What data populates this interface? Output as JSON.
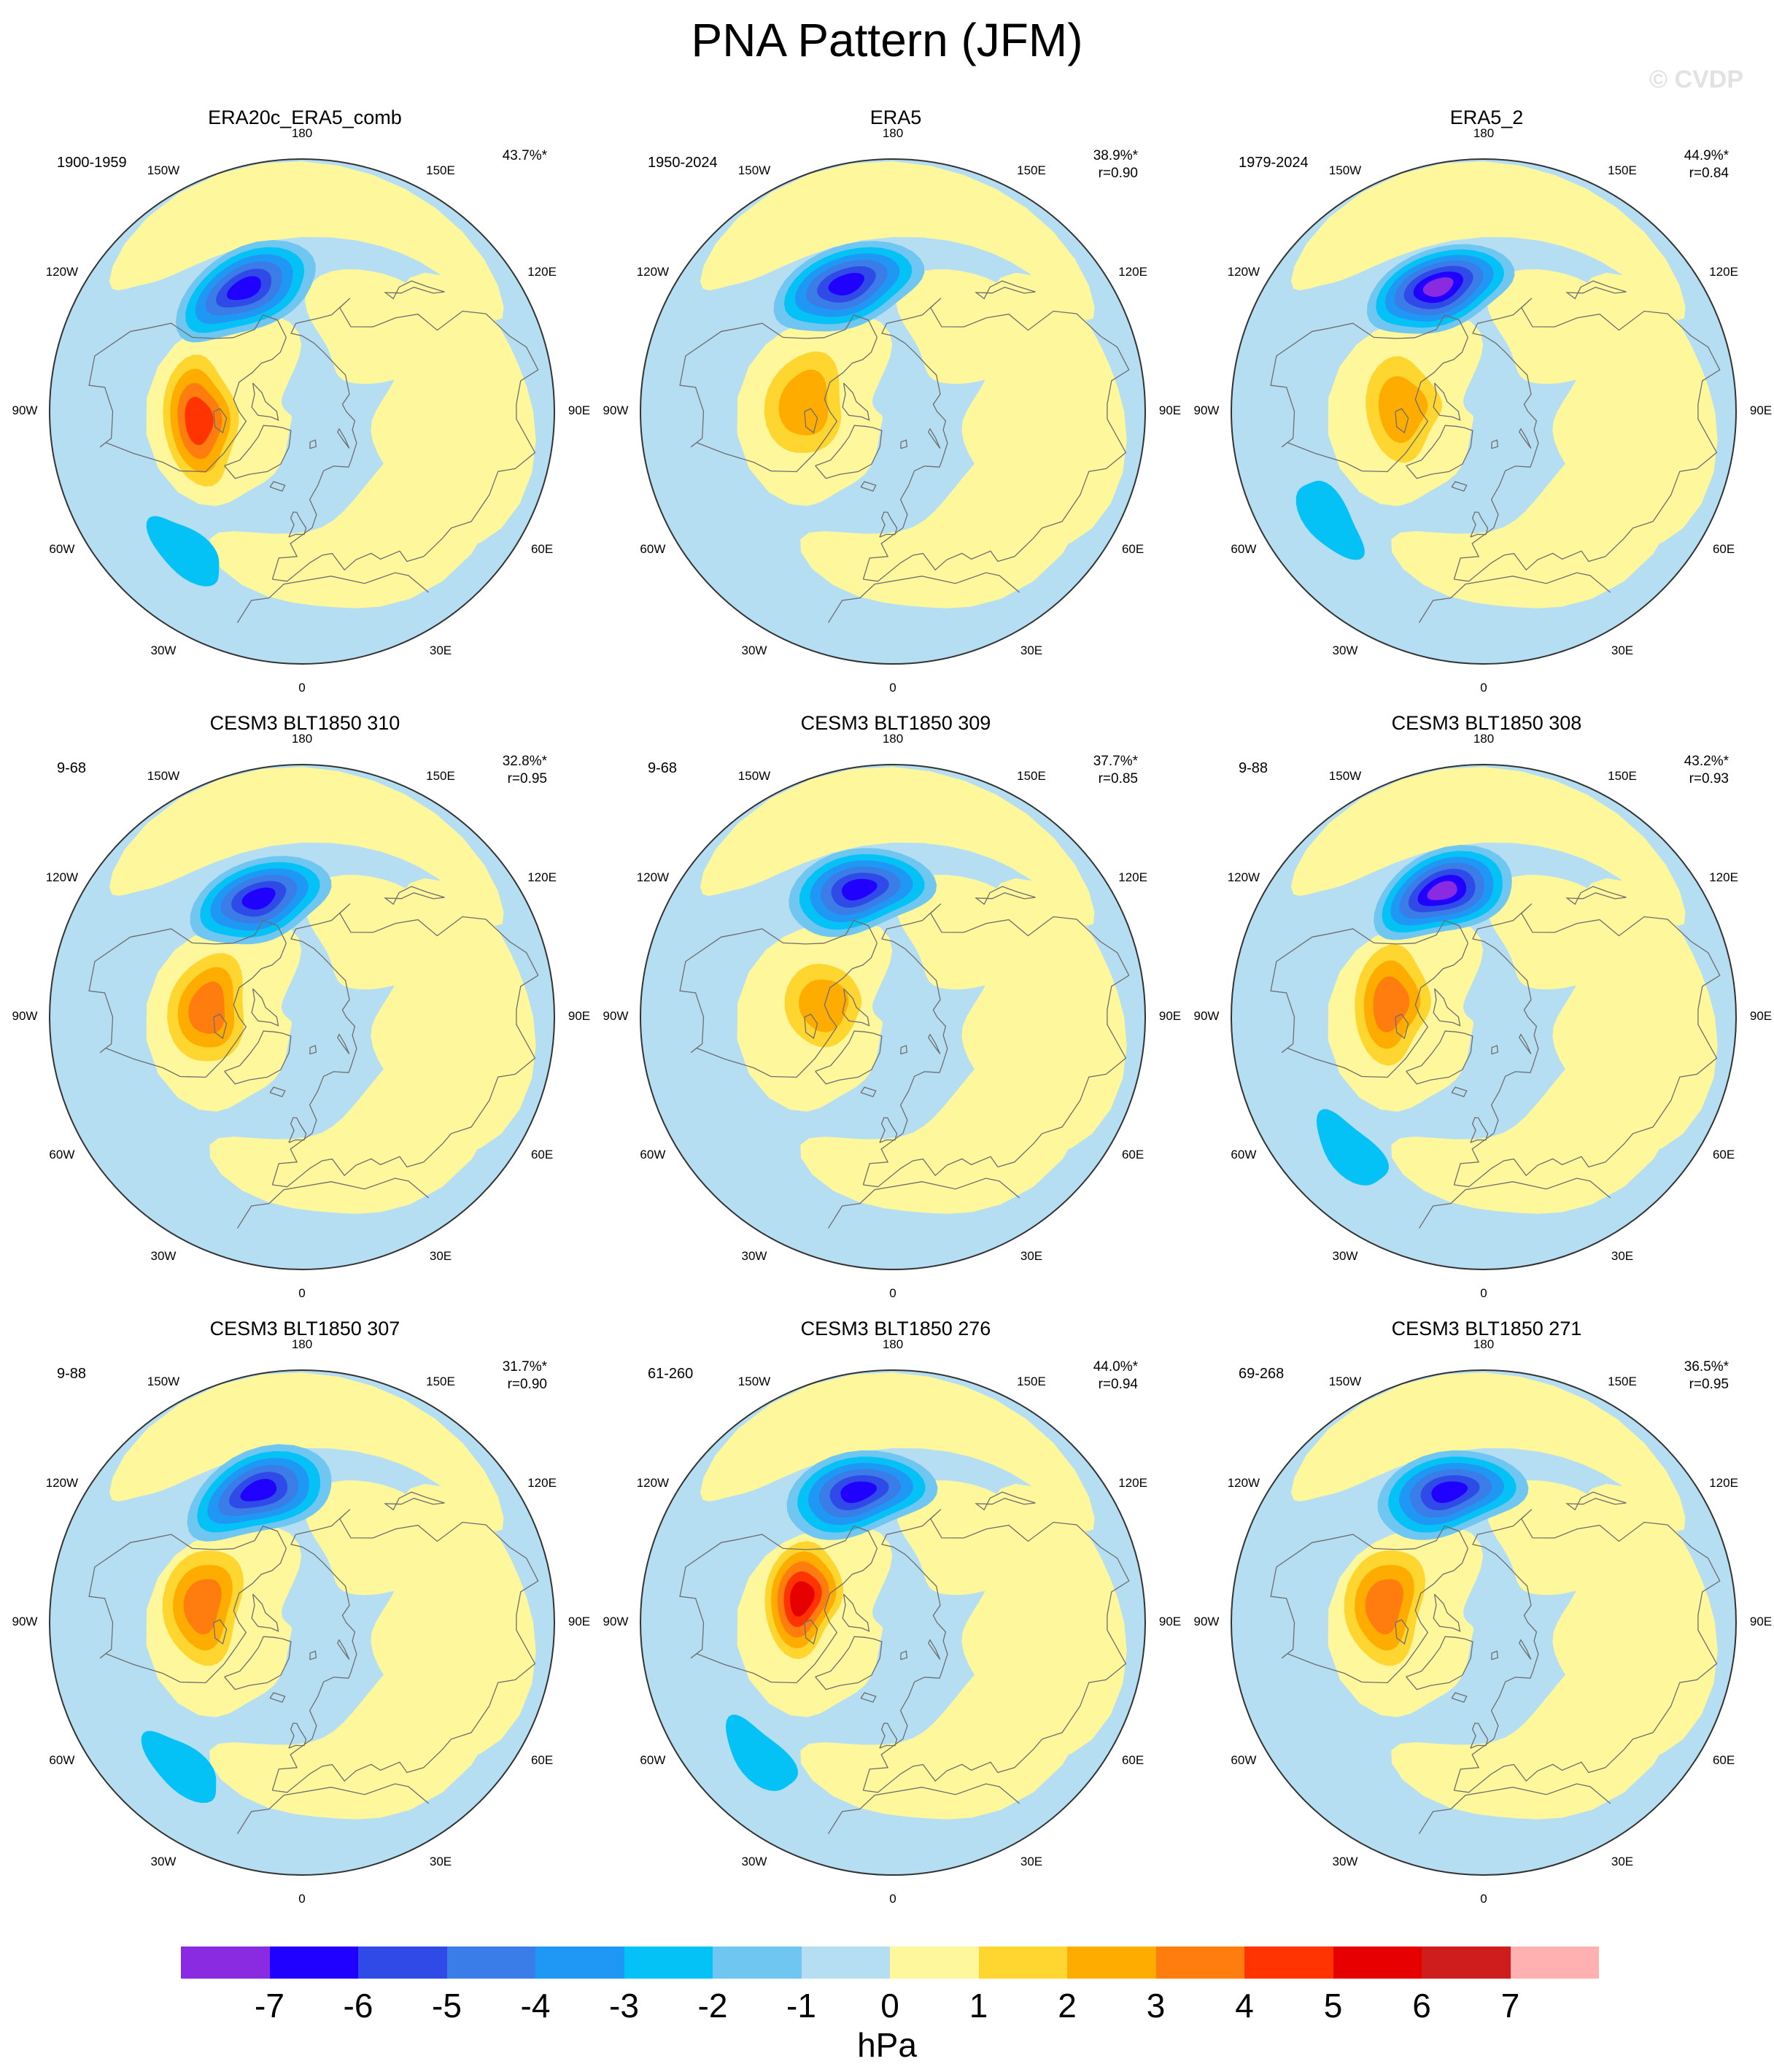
{
  "title": "PNA Pattern (JFM)",
  "credit": "© CVDP",
  "colors": {
    "levels": [
      "#8a2be2",
      "#2000ff",
      "#2f4ae6",
      "#3a7ce8",
      "#1f98f5",
      "#04c2f5",
      "#6fc6f0",
      "#b5def2",
      "#fff79c",
      "#ffd530",
      "#ffac00",
      "#ff7d0e",
      "#ff3400",
      "#e60000",
      "#cf1c1c",
      "#ffb0b0"
    ],
    "coast": "#6e6e6e",
    "circle": "#333333"
  },
  "colorbar": {
    "ticks": [
      "-7",
      "-6",
      "-5",
      "-4",
      "-3",
      "-2",
      "-1",
      "0",
      "1",
      "2",
      "3",
      "4",
      "5",
      "6",
      "7"
    ],
    "unit": "hPa"
  },
  "lon_labels": [
    "180",
    "150E",
    "120E",
    "90E",
    "60E",
    "30E",
    "0",
    "30W",
    "60W",
    "90W",
    "120W",
    "150W"
  ],
  "panels": [
    {
      "title": "ERA20c_ERA5_comb",
      "years": "1900-1959",
      "pct": "43.7%*",
      "r": "",
      "low": {
        "lon": -155,
        "lat": 47,
        "min": -6
      },
      "high": {
        "lon": -85,
        "lat": 57,
        "max": 3.2
      },
      "atl": {
        "lon": -40,
        "lat": 32,
        "min": -2
      }
    },
    {
      "title": "ERA5",
      "years": "1950-2024",
      "pct": "38.9%*",
      "r": "r=0.90",
      "low": {
        "lon": -160,
        "lat": 47,
        "min": -6
      },
      "high": {
        "lon": -95,
        "lat": 62,
        "max": 1.5
      },
      "atl": {
        "lon": -55,
        "lat": 30,
        "min": -1
      }
    },
    {
      "title": "ERA5_2",
      "years": "1979-2024",
      "pct": "44.9%*",
      "r": "r=0.84",
      "low": {
        "lon": -160,
        "lat": 48,
        "min": -6.5
      },
      "high": {
        "lon": -92,
        "lat": 64,
        "max": 1.5
      },
      "atl": {
        "lon": -55,
        "lat": 30,
        "min": -2
      }
    },
    {
      "title": "CESM3 BLT1850 310",
      "years": "9-68",
      "pct": "32.8%*",
      "r": "r=0.95",
      "low": {
        "lon": -160,
        "lat": 50,
        "min": -5.5
      },
      "high": {
        "lon": -95,
        "lat": 60,
        "max": 3
      },
      "atl": {
        "lon": -40,
        "lat": 32,
        "min": -1
      }
    },
    {
      "title": "CESM3 BLT1850 309",
      "years": "9-68",
      "pct": "37.7%*",
      "r": "r=0.85",
      "low": {
        "lon": -165,
        "lat": 48,
        "min": -5.5
      },
      "high": {
        "lon": -100,
        "lat": 68,
        "max": 1.5
      },
      "atl": {
        "lon": -40,
        "lat": 30,
        "min": -1
      }
    },
    {
      "title": "CESM3 BLT1850 308",
      "years": "9-88",
      "pct": "43.2%*",
      "r": "r=0.93",
      "low": {
        "lon": -162,
        "lat": 48,
        "min": -6.5
      },
      "high": {
        "lon": -98,
        "lat": 60,
        "max": 2.5
      },
      "atl": {
        "lon": -45,
        "lat": 30,
        "min": -2
      }
    },
    {
      "title": "CESM3 BLT1850 307",
      "years": "9-88",
      "pct": "31.7%*",
      "r": "r=0.90",
      "low": {
        "lon": -162,
        "lat": 46,
        "min": -5.5
      },
      "high": {
        "lon": -100,
        "lat": 58,
        "max": 2.5
      },
      "atl": {
        "lon": -40,
        "lat": 30,
        "min": -2
      }
    },
    {
      "title": "CESM3 BLT1850 276",
      "years": "61-260",
      "pct": "44.0%*",
      "r": "r=0.94",
      "low": {
        "lon": -165,
        "lat": 47,
        "min": -5.5
      },
      "high": {
        "lon": -105,
        "lat": 60,
        "max": 4.2
      },
      "atl": {
        "lon": -45,
        "lat": 30,
        "min": -2
      }
    },
    {
      "title": "CESM3 BLT1850 271",
      "years": "69-268",
      "pct": "36.5%*",
      "r": "r=0.95",
      "low": {
        "lon": -165,
        "lat": 47,
        "min": -5.5
      },
      "high": {
        "lon": -100,
        "lat": 58,
        "max": 2.5
      },
      "atl": {
        "lon": -40,
        "lat": 30,
        "min": -1
      }
    }
  ]
}
